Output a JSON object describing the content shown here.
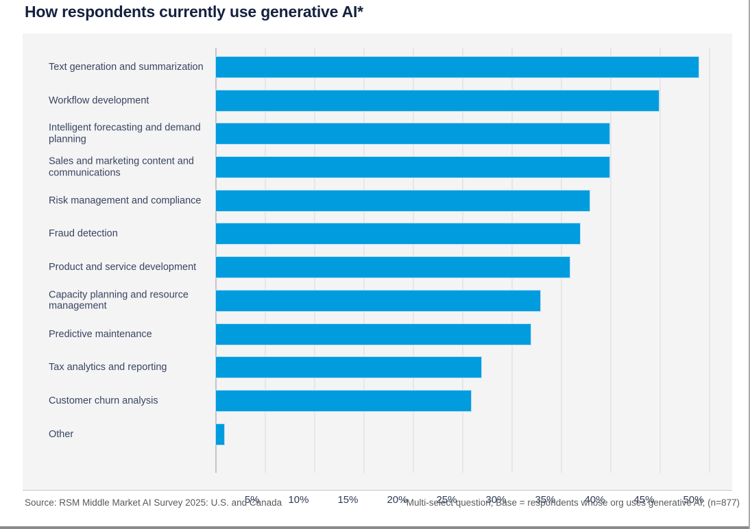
{
  "title": "How respondents currently use generative AI*",
  "footer": {
    "source": "Source: RSM Middle Market AI Survey 2025: U.S. and Canada",
    "note": "*Multi-select question; Base = respondents whose org uses generative AI; (n=877)"
  },
  "chart_data": {
    "type": "bar",
    "orientation": "horizontal",
    "title": "How respondents currently use generative AI*",
    "xlabel": "",
    "ylabel": "",
    "unit": "%",
    "xlim": [
      0,
      52
    ],
    "grid": true,
    "bar_color": "#009cde",
    "x_ticks": [
      {
        "value": 5,
        "label": "5%"
      },
      {
        "value": 10,
        "label": "10%"
      },
      {
        "value": 15,
        "label": "15%"
      },
      {
        "value": 20,
        "label": "20%"
      },
      {
        "value": 25,
        "label": "25%"
      },
      {
        "value": 30,
        "label": "30%"
      },
      {
        "value": 35,
        "label": "35%"
      },
      {
        "value": 40,
        "label": "40%"
      },
      {
        "value": 45,
        "label": "45%"
      },
      {
        "value": 50,
        "label": "50%"
      }
    ],
    "categories": [
      "Text generation and summarization",
      "Workflow development",
      "Intelligent forecasting and demand planning",
      "Sales and marketing content and communications",
      "Risk management and compliance",
      "Fraud detection",
      "Product and service development",
      "Capacity planning and resource management",
      "Predictive maintenance",
      "Tax analytics and reporting",
      "Customer churn analysis",
      "Other"
    ],
    "values": [
      49,
      45,
      40,
      40,
      38,
      37,
      36,
      33,
      32,
      27,
      26,
      1
    ]
  },
  "colors": {
    "bar": "#009cde",
    "title_text": "#14213e",
    "label_text": "#39455f",
    "tick_text": "#2e3a55",
    "footer_text": "#58595b",
    "panel_bg": "#f4f4f5",
    "gridline": "#e7e7e9",
    "axis_line": "#c4c4c6"
  }
}
